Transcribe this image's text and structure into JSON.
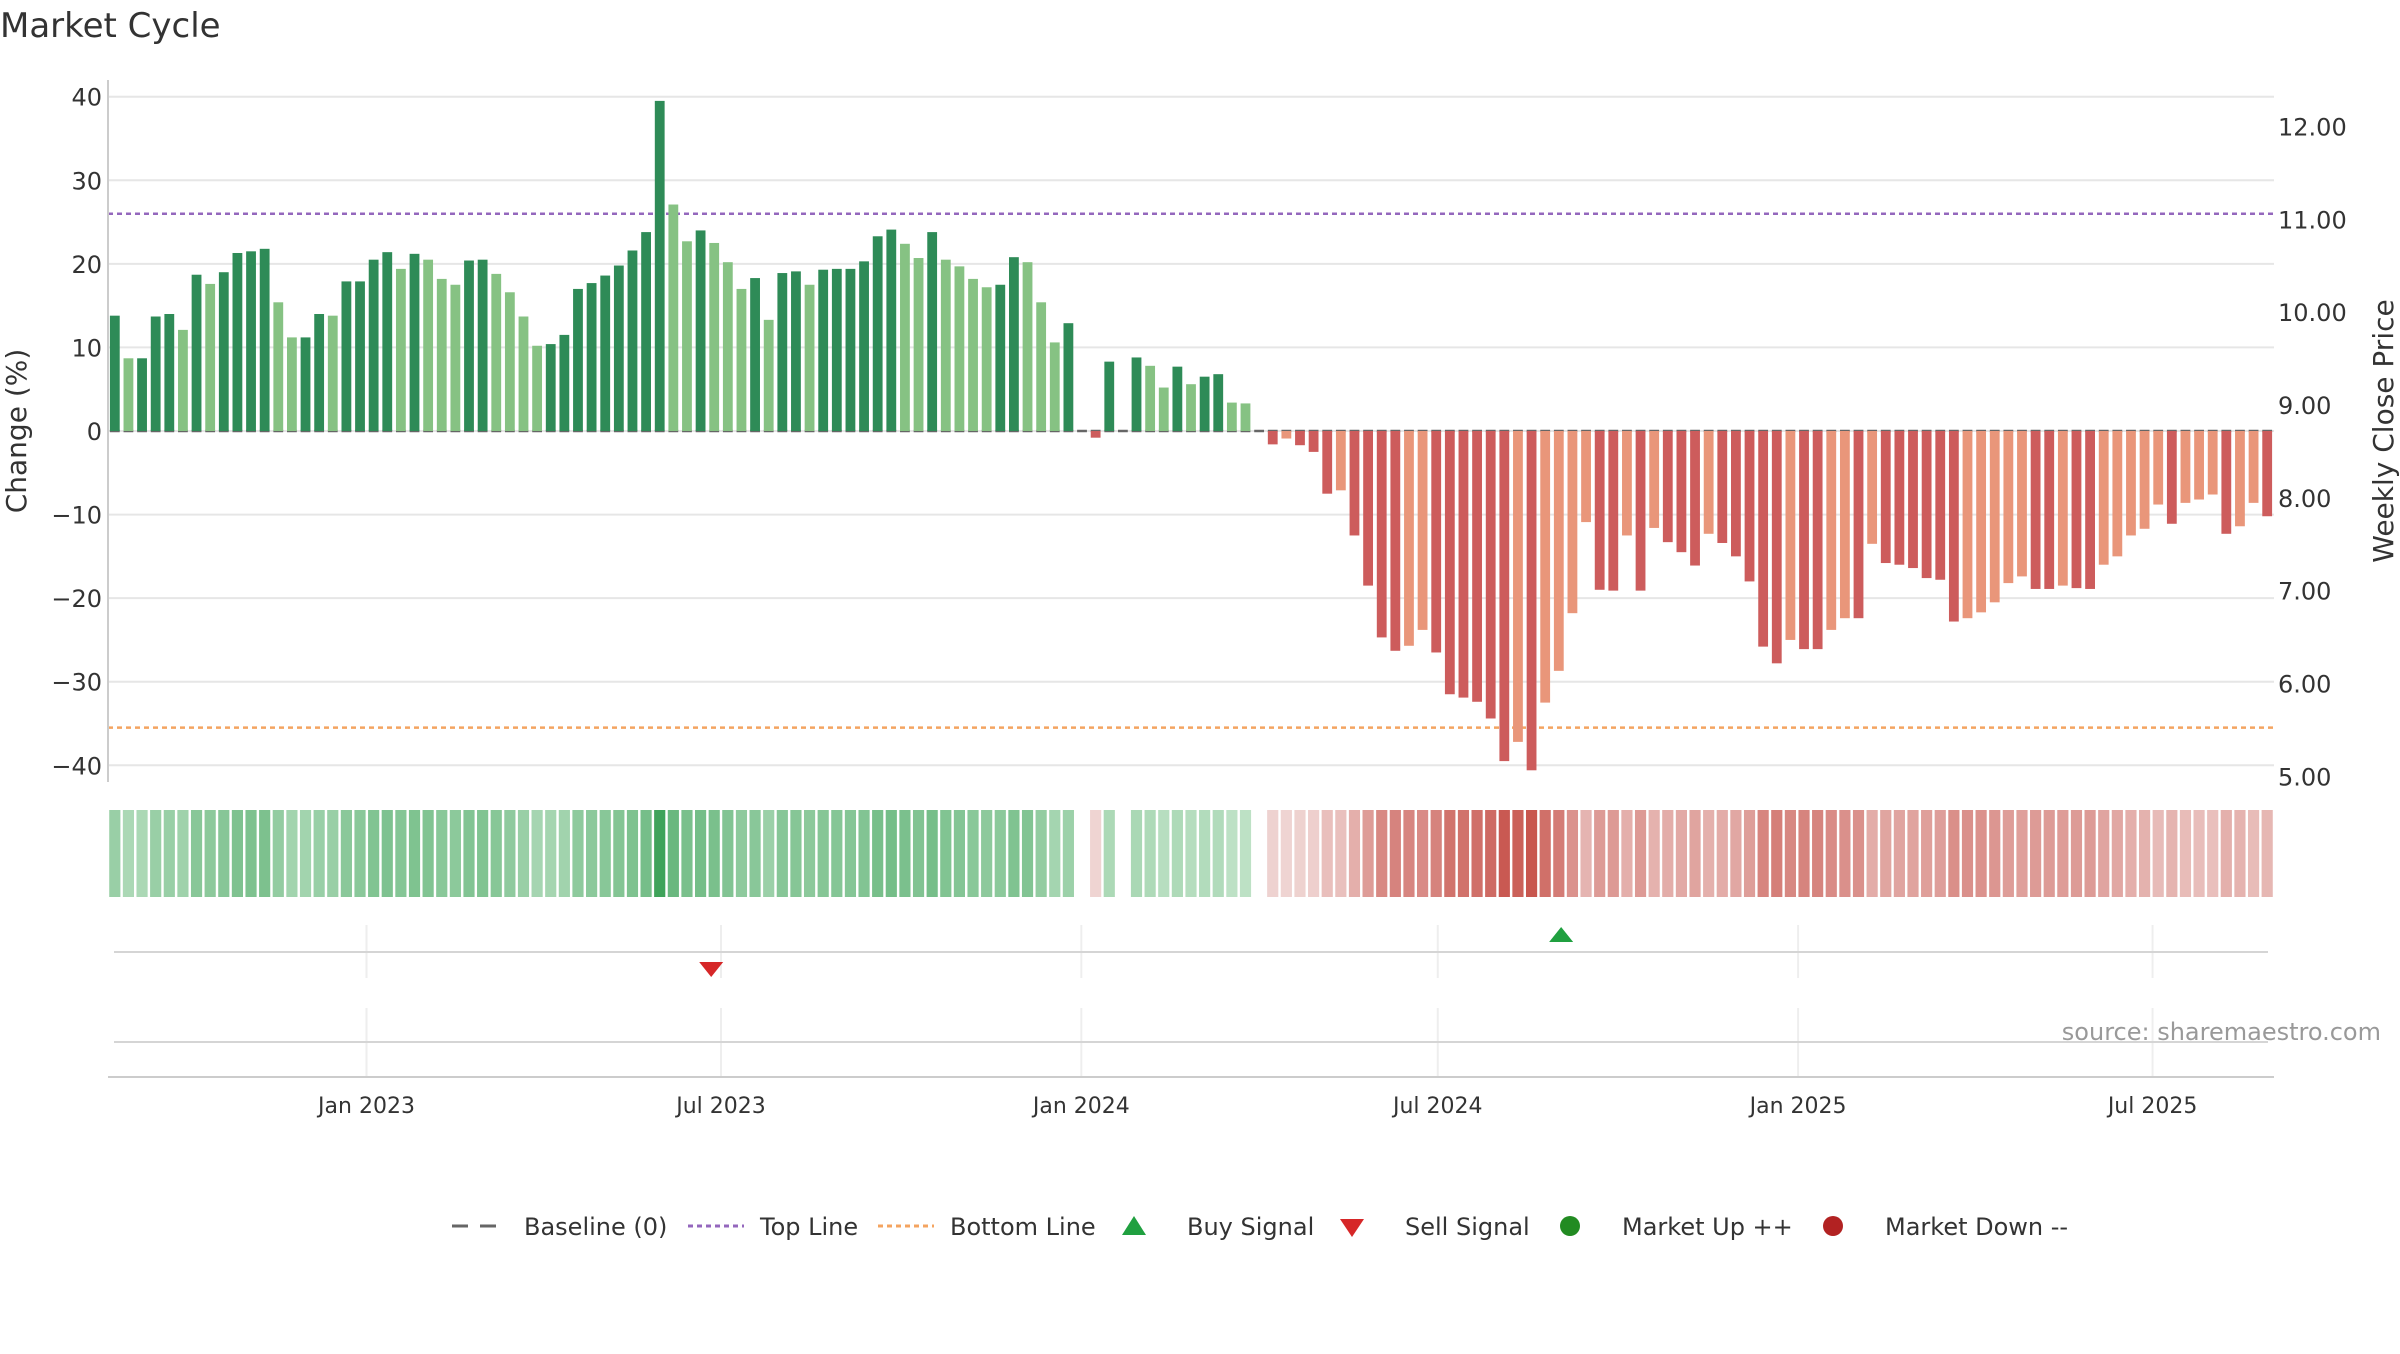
{
  "chart_data": {
    "type": "bar",
    "title": "Market Cycle",
    "ylabel": "Change (%)",
    "y2label": "Weekly Close Price",
    "source": "source: sharemaestro.com",
    "ylim": [
      -42,
      42
    ],
    "y2lim": [
      4.94,
      12.5
    ],
    "yticks": [
      40,
      30,
      20,
      10,
      0,
      -10,
      -20,
      -30,
      -40
    ],
    "ytick_labels": [
      "40",
      "30",
      "20",
      "10",
      "0",
      "−10",
      "−20",
      "−30",
      "−40"
    ],
    "y2ticks": [
      12.0,
      11.0,
      10.0,
      9.0,
      8.0,
      7.0,
      6.0,
      5.0
    ],
    "y2tick_labels": [
      "12.00",
      "11.00",
      "10.00",
      "9.00",
      "8.00",
      "7.00",
      "6.00",
      "5.00"
    ],
    "x_start": "2022-08-22",
    "x_end": "2025-09-01",
    "xticks": [
      "2023-01-01",
      "2023-07-01",
      "2024-01-01",
      "2024-07-01",
      "2025-01-01",
      "2025-07-01"
    ],
    "xtick_labels": [
      "Jan 2023",
      "Jul 2023",
      "Jan 2024",
      "Jul 2024",
      "Jan 2025",
      "Jul 2025"
    ],
    "top_line": 26,
    "bottom_line": -35.5,
    "baseline": 0,
    "series": [
      {
        "name": "Change (%)",
        "values": [
          13.8,
          8.7,
          8.7,
          13.7,
          14,
          12.1,
          18.7,
          17.6,
          19,
          21.3,
          21.5,
          21.8,
          15.4,
          11.2,
          11.2,
          14,
          13.8,
          17.9,
          17.9,
          20.5,
          21.4,
          19.4,
          21.2,
          20.5,
          18.2,
          17.5,
          20.4,
          20.5,
          18.8,
          16.6,
          13.7,
          10.2,
          10.4,
          11.5,
          17,
          17.7,
          18.6,
          19.8,
          21.6,
          23.8,
          39.5,
          27.1,
          22.7,
          24,
          22.5,
          20.2,
          17,
          18.3,
          13.3,
          18.9,
          19.1,
          17.5,
          19.3,
          19.4,
          19.4,
          20.3,
          23.3,
          24.1,
          22.4,
          20.7,
          23.8,
          20.5,
          19.7,
          18.2,
          17.2,
          17.5,
          20.8,
          20.2,
          15.4,
          10.6,
          12.9,
          0,
          -0.8,
          8.3,
          0,
          8.8,
          7.8,
          5.2,
          7.7,
          5.6,
          6.5,
          6.8,
          3.4,
          3.3,
          0,
          -1.6,
          -0.9,
          -1.7,
          -2.5,
          -7.5,
          -7.1,
          -12.5,
          -18.5,
          -24.7,
          -26.3,
          -25.7,
          -23.8,
          -26.5,
          -31.5,
          -31.9,
          -32.4,
          -34.4,
          -39.5,
          -37.2,
          -40.6,
          -32.5,
          -28.7,
          -21.8,
          -10.9,
          -19,
          -19.1,
          -12.5,
          -19.1,
          -11.6,
          -13.3,
          -14.5,
          -16.1,
          -12.3,
          -13.4,
          -15,
          -18,
          -25.8,
          -27.8,
          -25,
          -26.1,
          -26.1,
          -23.8,
          -22.4,
          -22.4,
          -13.5,
          -15.8,
          -16,
          -16.4,
          -17.6,
          -17.8,
          -22.8,
          -22.4,
          -21.7,
          -20.5,
          -18.2,
          -17.4,
          -18.9,
          -18.9,
          -18.5,
          -18.8,
          -18.9,
          -16,
          -15,
          -12.5,
          -11.7,
          -8.8,
          -11.1,
          -8.6,
          -8.2,
          -7.6,
          -12.3,
          -11.4,
          -8.6,
          -10.2
        ]
      }
    ],
    "heat_strip_palette": {
      "pos_light": "#c9e7cf",
      "pos_dark": "#3fa35a",
      "neg_light": "#f0d7d5",
      "neg_dark": "#c8564e"
    },
    "bar_colors": {
      "pos_dark": "#2e8b57",
      "pos_light": "#86c283",
      "neg_dark": "#cd5c5c",
      "neg_light": "#e9967a"
    },
    "signals": [
      {
        "type": "sell",
        "date": "2023-06-26",
        "label": "Sell Signal"
      },
      {
        "type": "buy",
        "date": "2024-09-02",
        "label": "Buy Signal"
      }
    ],
    "legend": [
      {
        "key": "baseline",
        "label": "Baseline (0)",
        "color": "#666666"
      },
      {
        "key": "top",
        "label": "Top Line",
        "color": "#9467bd"
      },
      {
        "key": "bottom",
        "label": "Bottom Line",
        "color": "#f4a460"
      },
      {
        "key": "buy",
        "label": "Buy Signal",
        "color": "#20a040"
      },
      {
        "key": "sell",
        "label": "Sell Signal",
        "color": "#d62728"
      },
      {
        "key": "up",
        "label": "Market Up ++",
        "color": "#228b22"
      },
      {
        "key": "down",
        "label": "Market Down --",
        "color": "#b22222"
      }
    ],
    "legend_placement": "bottom-center",
    "grid": true
  }
}
